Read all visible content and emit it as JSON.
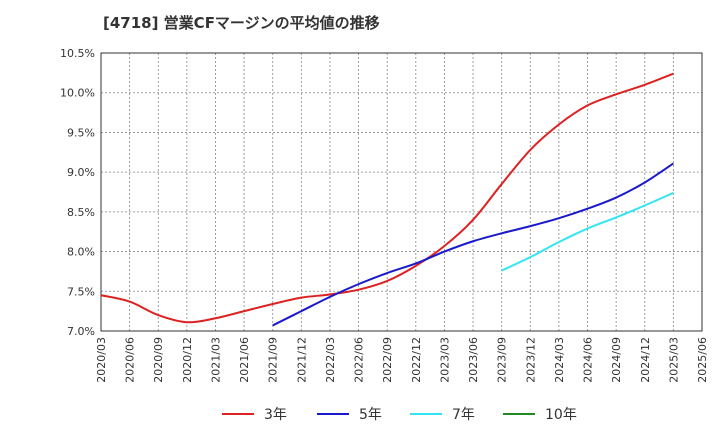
{
  "title": "[4718]  営業CFマージンの平均値の推移",
  "chart_data": {
    "type": "line",
    "title": "[4718]  営業CFマージンの平均値の推移",
    "xlabel": "",
    "ylabel": "",
    "ylim": [
      7.0,
      10.5
    ],
    "y_ticks": [
      "7.0%",
      "7.5%",
      "8.0%",
      "8.5%",
      "9.0%",
      "9.5%",
      "10.0%",
      "10.5%"
    ],
    "x_ticks": [
      "2020/03",
      "2020/06",
      "2020/09",
      "2020/12",
      "2021/03",
      "2021/06",
      "2021/09",
      "2021/12",
      "2022/03",
      "2022/06",
      "2022/09",
      "2022/12",
      "2023/03",
      "2023/06",
      "2023/09",
      "2023/12",
      "2024/03",
      "2024/06",
      "2024/09",
      "2024/12",
      "2025/03",
      "2025/06"
    ],
    "grid": true,
    "legend_position": "bottom",
    "series": [
      {
        "name": "3年",
        "color": "#dd2222",
        "x": [
          "2020/03",
          "2020/06",
          "2020/09",
          "2020/12",
          "2021/03",
          "2021/06",
          "2021/09",
          "2021/12",
          "2022/03",
          "2022/06",
          "2022/09",
          "2022/12",
          "2023/03",
          "2023/06",
          "2023/09",
          "2023/12",
          "2024/03",
          "2024/06",
          "2024/09",
          "2024/12",
          "2025/03"
        ],
        "values": [
          7.45,
          7.37,
          7.2,
          7.11,
          7.16,
          7.25,
          7.34,
          7.42,
          7.46,
          7.52,
          7.63,
          7.82,
          8.07,
          8.4,
          8.85,
          9.28,
          9.6,
          9.84,
          9.98,
          10.1,
          10.24
        ]
      },
      {
        "name": "5年",
        "color": "#1a1acc",
        "x": [
          "2021/09",
          "2021/12",
          "2022/03",
          "2022/06",
          "2022/09",
          "2022/12",
          "2023/03",
          "2023/06",
          "2023/09",
          "2023/12",
          "2024/03",
          "2024/06",
          "2024/09",
          "2024/12",
          "2025/03"
        ],
        "values": [
          7.07,
          7.25,
          7.43,
          7.59,
          7.73,
          7.85,
          8.0,
          8.13,
          8.23,
          8.32,
          8.42,
          8.54,
          8.68,
          8.87,
          9.11
        ]
      },
      {
        "name": "7年",
        "color": "#33e5f0",
        "x": [
          "2023/09",
          "2023/12",
          "2024/03",
          "2024/06",
          "2024/09",
          "2024/12",
          "2025/03"
        ],
        "values": [
          7.76,
          7.93,
          8.12,
          8.29,
          8.43,
          8.58,
          8.74
        ]
      },
      {
        "name": "10年",
        "color": "#228822",
        "x": [],
        "values": []
      }
    ]
  }
}
